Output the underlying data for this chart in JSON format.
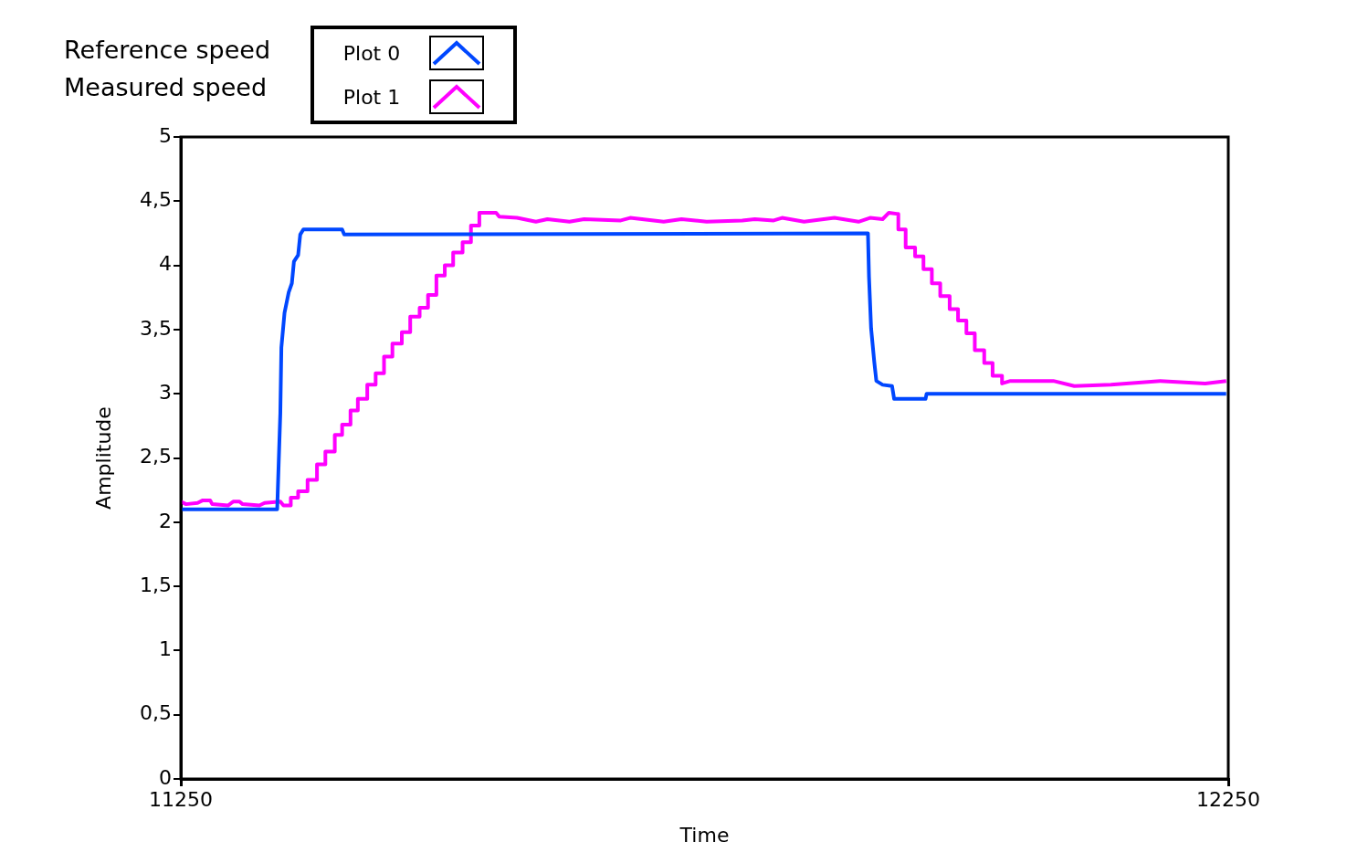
{
  "chart_data": {
    "type": "line",
    "xlabel": "Time",
    "ylabel": "Amplitude",
    "annotations": [
      "Reference speed",
      "Measured speed"
    ],
    "legend": "top left",
    "grid": false,
    "marker": "none",
    "line_style": "solid",
    "xlim": [
      11250,
      12250
    ],
    "xticks": [
      11250,
      12250
    ],
    "ylim": [
      0,
      5
    ],
    "yticks": [
      0,
      {
        "value": 0.5,
        "label": "0,5"
      },
      1,
      {
        "value": 1.5,
        "label": "1,5"
      },
      2,
      {
        "value": 2.5,
        "label": "2,5"
      },
      3,
      {
        "value": 3.5,
        "label": "3,5"
      },
      4,
      {
        "value": 4.5,
        "label": "4,5"
      },
      5
    ],
    "series": [
      {
        "name": "Plot 0",
        "color": "#0047ff",
        "x": [
          11250,
          11342,
          11345,
          11346,
          11349,
          11353,
          11356,
          11358,
          11362,
          11364,
          11367,
          11404,
          11406,
          11906,
          11907,
          11909,
          11912,
          11914,
          11920,
          11929,
          11931,
          11961,
          11962,
          12248
        ],
        "values": [
          2.1,
          2.1,
          2.85,
          3.36,
          3.63,
          3.79,
          3.86,
          4.03,
          4.08,
          4.24,
          4.28,
          4.28,
          4.24,
          4.25,
          3.91,
          3.51,
          3.25,
          3.1,
          3.07,
          3.06,
          2.96,
          2.96,
          3.0,
          3.0
        ]
      },
      {
        "name": "Plot 1",
        "color": "#ff00ff",
        "x": [
          11250,
          11255,
          11266,
          11271,
          11278,
          11280,
          11295,
          11300,
          11306,
          11309,
          11325,
          11330,
          11345,
          11348,
          11355,
          11355,
          11362,
          11362,
          11371,
          11371,
          11380,
          11380,
          11388,
          11388,
          11397,
          11397,
          11404,
          11404,
          11412,
          11412,
          11419,
          11419,
          11428,
          11428,
          11436,
          11436,
          11444,
          11444,
          11452,
          11452,
          11461,
          11461,
          11469,
          11469,
          11478,
          11478,
          11486,
          11486,
          11494,
          11494,
          11502,
          11502,
          11510,
          11510,
          11519,
          11519,
          11527,
          11527,
          11535,
          11535,
          11551,
          11554,
          11571,
          11589,
          11600,
          11621,
          11635,
          11670,
          11679,
          11711,
          11728,
          11752,
          11786,
          11798,
          11816,
          11824,
          11845,
          11874,
          11897,
          11908,
          11920,
          11926,
          11935,
          11935,
          11942,
          11942,
          11951,
          11951,
          11959,
          11959,
          11967,
          11967,
          11975,
          11975,
          11984,
          11984,
          11992,
          11992,
          12000,
          12000,
          12008,
          12008,
          12017,
          12017,
          12025,
          12025,
          12034,
          12034,
          12042,
          12083,
          12103,
          12138,
          12185,
          12228,
          12248
        ],
        "values": [
          2.16,
          2.14,
          2.15,
          2.17,
          2.17,
          2.14,
          2.13,
          2.16,
          2.16,
          2.14,
          2.13,
          2.15,
          2.16,
          2.13,
          2.13,
          2.19,
          2.19,
          2.24,
          2.24,
          2.33,
          2.33,
          2.45,
          2.45,
          2.55,
          2.55,
          2.68,
          2.68,
          2.76,
          2.76,
          2.87,
          2.87,
          2.96,
          2.96,
          3.07,
          3.07,
          3.16,
          3.16,
          3.29,
          3.29,
          3.39,
          3.39,
          3.48,
          3.48,
          3.6,
          3.6,
          3.67,
          3.67,
          3.77,
          3.77,
          3.92,
          3.92,
          4.0,
          4.0,
          4.1,
          4.1,
          4.18,
          4.18,
          4.31,
          4.31,
          4.41,
          4.41,
          4.38,
          4.37,
          4.34,
          4.36,
          4.34,
          4.36,
          4.35,
          4.37,
          4.34,
          4.36,
          4.34,
          4.35,
          4.36,
          4.35,
          4.37,
          4.34,
          4.37,
          4.34,
          4.37,
          4.36,
          4.41,
          4.4,
          4.28,
          4.28,
          4.14,
          4.14,
          4.07,
          4.07,
          3.97,
          3.97,
          3.86,
          3.86,
          3.76,
          3.76,
          3.66,
          3.66,
          3.57,
          3.57,
          3.47,
          3.47,
          3.34,
          3.34,
          3.24,
          3.24,
          3.14,
          3.14,
          3.08,
          3.1,
          3.1,
          3.06,
          3.07,
          3.1,
          3.08,
          3.1
        ]
      }
    ]
  }
}
